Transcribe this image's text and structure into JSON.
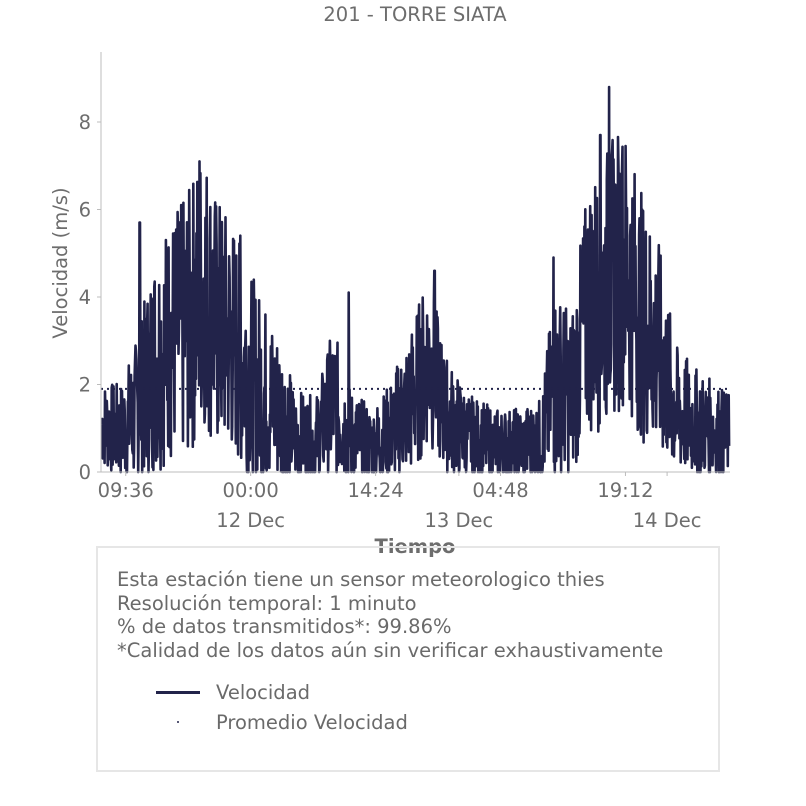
{
  "chart_data": {
    "type": "line",
    "title": "201 - TORRE SIATA",
    "xlabel": "Tiempo",
    "ylabel": "Velocidad (m/s)",
    "ylim": [
      0,
      9.6
    ],
    "xlim_hours": [
      -17.25,
      55.25
    ],
    "x_axis_origin": "2023-12-12 00:00",
    "y_ticks": [
      0,
      2,
      4,
      6,
      8
    ],
    "x_ticks": [
      {
        "hours": -14.4,
        "label": "09:36",
        "sublabel": ""
      },
      {
        "hours": 0,
        "label": "00:00",
        "sublabel": "12 Dec"
      },
      {
        "hours": 14.4,
        "label": "14:24",
        "sublabel": ""
      },
      {
        "hours": 24,
        "label": "",
        "sublabel": "13 Dec"
      },
      {
        "hours": 28.8,
        "label": "04:48",
        "sublabel": ""
      },
      {
        "hours": 43.2,
        "label": "19:12",
        "sublabel": ""
      },
      {
        "hours": 48,
        "label": "",
        "sublabel": "14 Dec"
      }
    ],
    "series": [
      {
        "name": "Velocidad",
        "color": "#22234a",
        "style": "solid",
        "envelope": [
          {
            "hours": -17.2,
            "value": 1.1,
            "spread": 0.8
          },
          {
            "hours": -15.0,
            "value": 0.9,
            "spread": 0.9
          },
          {
            "hours": -13.0,
            "value": 1.4,
            "spread": 1.4
          },
          {
            "hours": -11.0,
            "value": 2.6,
            "spread": 2.1
          },
          {
            "hours": -9.0,
            "value": 3.1,
            "spread": 2.3
          },
          {
            "hours": -7.0,
            "value": 3.4,
            "spread": 2.5
          },
          {
            "hours": -5.5,
            "value": 4.4,
            "spread": 2.7
          },
          {
            "hours": -4.0,
            "value": 3.4,
            "spread": 2.4
          },
          {
            "hours": -2.0,
            "value": 3.0,
            "spread": 2.2
          },
          {
            "hours": 0.0,
            "value": 2.2,
            "spread": 1.9
          },
          {
            "hours": 2.0,
            "value": 1.7,
            "spread": 1.6
          },
          {
            "hours": 3.5,
            "value": 1.4,
            "spread": 1.4
          },
          {
            "hours": 5.0,
            "value": 0.8,
            "spread": 0.9
          },
          {
            "hours": 7.5,
            "value": 0.7,
            "spread": 0.8
          },
          {
            "hours": 9.5,
            "value": 1.6,
            "spread": 1.4
          },
          {
            "hours": 11.5,
            "value": 0.8,
            "spread": 0.9
          },
          {
            "hours": 14.0,
            "value": 0.6,
            "spread": 0.7
          },
          {
            "hours": 16.0,
            "value": 0.9,
            "spread": 0.9
          },
          {
            "hours": 18.5,
            "value": 1.6,
            "spread": 1.4
          },
          {
            "hours": 20.5,
            "value": 2.6,
            "spread": 1.6
          },
          {
            "hours": 22.5,
            "value": 1.3,
            "spread": 1.1
          },
          {
            "hours": 25.0,
            "value": 0.8,
            "spread": 0.8
          },
          {
            "hours": 28.0,
            "value": 0.6,
            "spread": 0.7
          },
          {
            "hours": 31.0,
            "value": 0.6,
            "spread": 0.7
          },
          {
            "hours": 33.5,
            "value": 0.7,
            "spread": 0.8
          },
          {
            "hours": 35.0,
            "value": 2.0,
            "spread": 1.8
          },
          {
            "hours": 37.0,
            "value": 1.8,
            "spread": 1.5
          },
          {
            "hours": 39.0,
            "value": 3.8,
            "spread": 2.4
          },
          {
            "hours": 41.0,
            "value": 4.2,
            "spread": 2.6
          },
          {
            "hours": 43.0,
            "value": 4.8,
            "spread": 2.6
          },
          {
            "hours": 45.0,
            "value": 3.6,
            "spread": 2.3
          },
          {
            "hours": 47.0,
            "value": 2.8,
            "spread": 2.0
          },
          {
            "hours": 49.0,
            "value": 1.4,
            "spread": 1.2
          },
          {
            "hours": 51.5,
            "value": 1.1,
            "spread": 1.0
          },
          {
            "hours": 55.2,
            "value": 0.8,
            "spread": 0.8
          }
        ],
        "peaks": [
          {
            "hours": -12.8,
            "value": 5.7
          },
          {
            "hours": -8.0,
            "value": 6.1
          },
          {
            "hours": -5.9,
            "value": 7.1
          },
          {
            "hours": -1.2,
            "value": 5.4
          },
          {
            "hours": 11.3,
            "value": 4.1
          },
          {
            "hours": 21.2,
            "value": 4.6
          },
          {
            "hours": 34.9,
            "value": 4.9
          },
          {
            "hours": 40.3,
            "value": 7.7
          },
          {
            "hours": 41.3,
            "value": 8.8
          },
          {
            "hours": 42.8,
            "value": 6.9
          }
        ]
      },
      {
        "name": "Promedio Velocidad",
        "color": "#22234a",
        "style": "dotted",
        "value": 1.9
      }
    ],
    "legend": [
      {
        "label": "Velocidad",
        "marker": "line"
      },
      {
        "label": "Promedio Velocidad",
        "marker": "dot"
      }
    ],
    "grid": false
  },
  "info": {
    "lines": [
      "Esta estación tiene un sensor meteorologico thies",
      "Resolución temporal: 1 minuto",
      "% de datos transmitidos*: 99.86%",
      "*Calidad de los datos aún sin verificar exhaustivamente"
    ]
  }
}
